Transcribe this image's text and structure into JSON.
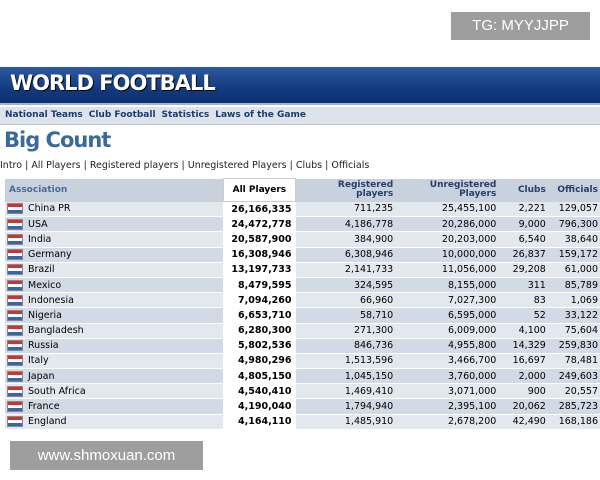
{
  "watermark_top": "TG: MYYJJPP",
  "watermark_bottom": "www.shmoxuan.com",
  "header": {
    "logo": "WORLD FOOTBALL"
  },
  "nav": [
    "National Teams",
    "Club Football",
    "Statistics",
    "Laws of the Game"
  ],
  "page_title": "Big Count",
  "subnav": [
    "Intro",
    "All Players",
    "Registered players",
    "Unregistered Players",
    "Clubs",
    "Officials"
  ],
  "table": {
    "columns": [
      "Association",
      "All Players",
      "Registered players",
      "Unregistered Players",
      "Clubs",
      "Officials"
    ],
    "rows": [
      [
        "China PR",
        "26,166,335",
        "711,235",
        "25,455,100",
        "2,221",
        "129,057"
      ],
      [
        "USA",
        "24,472,778",
        "4,186,778",
        "20,286,000",
        "9,000",
        "796,300"
      ],
      [
        "India",
        "20,587,900",
        "384,900",
        "20,203,000",
        "6,540",
        "38,640"
      ],
      [
        "Germany",
        "16,308,946",
        "6,308,946",
        "10,000,000",
        "26,837",
        "159,172"
      ],
      [
        "Brazil",
        "13,197,733",
        "2,141,733",
        "11,056,000",
        "29,208",
        "61,000"
      ],
      [
        "Mexico",
        "8,479,595",
        "324,595",
        "8,155,000",
        "311",
        "85,789"
      ],
      [
        "Indonesia",
        "7,094,260",
        "66,960",
        "7,027,300",
        "83",
        "1,069"
      ],
      [
        "Nigeria",
        "6,653,710",
        "58,710",
        "6,595,000",
        "52",
        "33,122"
      ],
      [
        "Bangladesh",
        "6,280,300",
        "271,300",
        "6,009,000",
        "4,100",
        "75,604"
      ],
      [
        "Russia",
        "5,802,536",
        "846,736",
        "4,955,800",
        "14,329",
        "259,830"
      ],
      [
        "Italy",
        "4,980,296",
        "1,513,596",
        "3,466,700",
        "16,697",
        "78,481"
      ],
      [
        "Japan",
        "4,805,150",
        "1,045,150",
        "3,760,000",
        "2,000",
        "249,603"
      ],
      [
        "South Africa",
        "4,540,410",
        "1,469,410",
        "3,071,000",
        "900",
        "20,557"
      ],
      [
        "France",
        "4,190,040",
        "1,794,940",
        "2,395,100",
        "20,062",
        "285,723"
      ],
      [
        "England",
        "4,164,110",
        "1,485,910",
        "2,678,200",
        "42,490",
        "168,186"
      ]
    ]
  }
}
